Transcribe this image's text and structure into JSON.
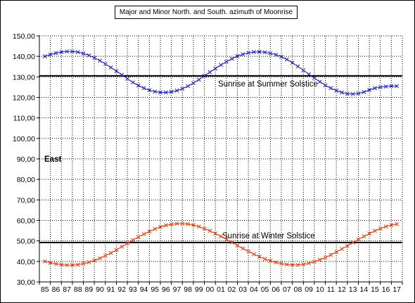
{
  "chart_data": {
    "type": "line",
    "title": "Major and Minor North. and South. azimuth of Moonrise",
    "xlabel": "",
    "ylabel": "",
    "ylim": [
      30,
      150
    ],
    "yticks": [
      "30,00",
      "40,00",
      "50,00",
      "60,00",
      "70,00",
      "80,00",
      "90,00",
      "100,00",
      "110,00",
      "120,00",
      "130,00",
      "140,00",
      "150,00"
    ],
    "categories": [
      "85",
      "86",
      "87",
      "88",
      "89",
      "90",
      "91",
      "92",
      "93",
      "94",
      "95",
      "96",
      "97",
      "98",
      "99",
      "00",
      "01",
      "02",
      "03",
      "04",
      "05",
      "06",
      "07",
      "08",
      "09",
      "10",
      "11",
      "12",
      "13",
      "14",
      "15",
      "16",
      "17"
    ],
    "x": [
      1985.0,
      1985.5,
      1986.0,
      1986.5,
      1987.0,
      1987.5,
      1988.0,
      1988.5,
      1989.0,
      1989.5,
      1990.0,
      1990.5,
      1991.0,
      1991.5,
      1992.0,
      1992.5,
      1993.0,
      1993.5,
      1994.0,
      1994.5,
      1995.0,
      1995.5,
      1996.0,
      1996.5,
      1997.0,
      1997.5,
      1998.0,
      1998.5,
      1999.0,
      1999.5,
      2000.0,
      2000.5,
      2001.0,
      2001.5,
      2002.0,
      2002.5,
      2003.0,
      2003.5,
      2004.0,
      2004.5,
      2005.0,
      2005.5,
      2006.0,
      2006.5,
      2007.0,
      2007.5,
      2008.0,
      2008.5,
      2009.0,
      2009.5,
      2010.0,
      2010.5,
      2011.0,
      2011.5,
      2012.0,
      2012.5,
      2013.0,
      2013.5,
      2014.0,
      2014.5,
      2015.0,
      2015.5,
      2016.0,
      2016.5,
      2017.0
    ],
    "series": [
      {
        "values": [
          140.0,
          140.9,
          141.6,
          142.1,
          142.4,
          142.4,
          142.1,
          141.4,
          140.5,
          139.3,
          137.9,
          136.3,
          134.6,
          132.8,
          131.0,
          129.1,
          127.3,
          125.8,
          124.5,
          123.5,
          122.8,
          122.4,
          122.4,
          122.7,
          123.3,
          124.2,
          125.5,
          127.0,
          128.6,
          130.5,
          132.3,
          134.1,
          135.8,
          137.4,
          138.8,
          140.1,
          141.0,
          141.7,
          142.1,
          142.2,
          142.0,
          141.5,
          140.8,
          139.8,
          138.5,
          136.9,
          135.1,
          133.2,
          131.3,
          129.4,
          127.6,
          125.9,
          124.5,
          123.3,
          122.4,
          121.8,
          121.6,
          121.9,
          122.6,
          123.6,
          124.5,
          125.0,
          125.3,
          125.5,
          125.5
        ],
        "color": "#1f1fbf"
      },
      {
        "values": [
          40.0,
          39.3,
          38.8,
          38.4,
          38.2,
          38.2,
          38.4,
          38.9,
          39.6,
          40.5,
          41.5,
          42.8,
          44.1,
          45.6,
          47.2,
          48.8,
          50.4,
          51.9,
          53.3,
          54.6,
          55.8,
          56.8,
          57.6,
          58.1,
          58.4,
          58.4,
          58.2,
          57.7,
          57.0,
          56.0,
          54.9,
          53.6,
          52.2,
          50.8,
          49.3,
          47.8,
          46.3,
          44.9,
          43.5,
          42.3,
          41.2,
          40.3,
          39.5,
          38.9,
          38.5,
          38.3,
          38.3,
          38.6,
          39.1,
          39.8,
          40.8,
          41.9,
          43.2,
          44.6,
          46.1,
          47.6,
          49.2,
          50.7,
          52.2,
          53.6,
          54.9,
          56.0,
          57.0,
          57.7,
          58.2
        ],
        "color": "#e0400f"
      }
    ],
    "hlines": [
      {
        "y": 130.5,
        "label": "Sunrise  at Summer Solstice",
        "color": "#000000"
      },
      {
        "y": 49.2,
        "label": "Sunrise  at Winter Solstice",
        "color": "#000000"
      }
    ],
    "annotation": "East",
    "grid": true,
    "legend": "none"
  }
}
